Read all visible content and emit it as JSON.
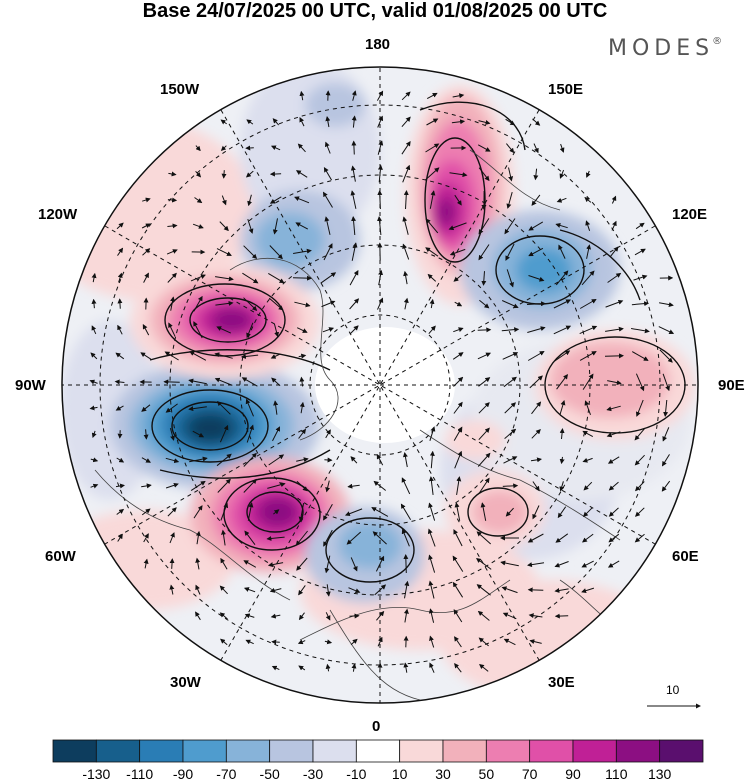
{
  "title": "Base 24/07/2025 00 UTC, valid 01/08/2025 00 UTC",
  "brand": "MODES",
  "brand_mark": "®",
  "longitude_labels": {
    "top": "180",
    "bottom": "0",
    "left": "90W",
    "right": "90E",
    "w150": "150W",
    "e150": "150E",
    "w120": "120W",
    "e120": "120E",
    "w60": "60W",
    "e60": "60E",
    "w30": "30W",
    "e30": "30E"
  },
  "reference_vector": {
    "value": "10"
  },
  "colorbar": {
    "labels": [
      "-130",
      "-110",
      "-90",
      "-70",
      "-50",
      "-30",
      "-10",
      "10",
      "30",
      "50",
      "70",
      "90",
      "110",
      "130"
    ],
    "colors": [
      "#0d3d5e",
      "#175f8c",
      "#2a7db5",
      "#4f9cce",
      "#87b3d9",
      "#b8c5e0",
      "#dcdfee",
      "#ffffff",
      "#f9d9d9",
      "#f2b1bb",
      "#ed7eb1",
      "#e050a8",
      "#c02096",
      "#8c0f82",
      "#5a0f6e"
    ]
  },
  "anomaly_centers": [
    {
      "name": "neg-center-north-america",
      "value": -130
    },
    {
      "name": "pos-center-canada",
      "value": 110
    },
    {
      "name": "pos-center-north-atlantic",
      "value": 110
    },
    {
      "name": "pos-center-east-siberia",
      "value": 110
    },
    {
      "name": "neg-center-central-siberia",
      "value": -70
    },
    {
      "name": "neg-center-alaska",
      "value": -70
    },
    {
      "name": "pos-center-central-asia",
      "value": 50
    },
    {
      "name": "neg-center-europe",
      "value": -50
    },
    {
      "name": "pos-center-middle-east",
      "value": 50
    }
  ]
}
